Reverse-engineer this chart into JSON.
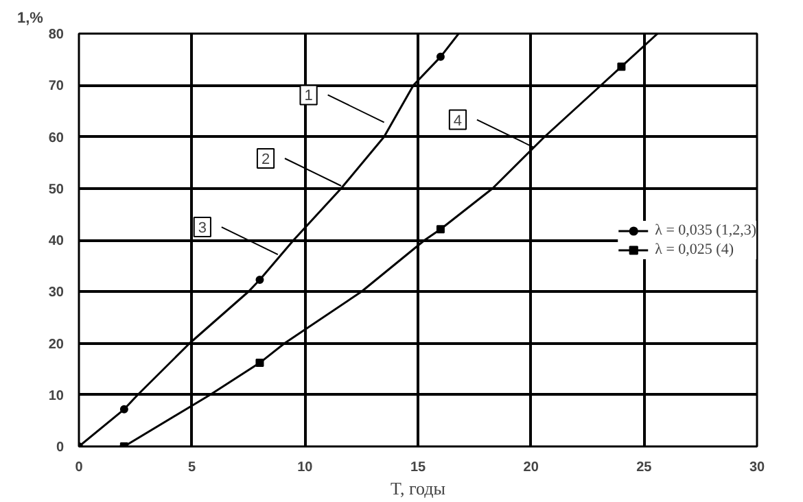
{
  "chart_data": {
    "type": "line",
    "xlabel": "T, годы",
    "ylabel": "1,%",
    "xlim": [
      0,
      30
    ],
    "ylim": [
      0,
      80
    ],
    "xticks": [
      0,
      5,
      10,
      15,
      20,
      25,
      30
    ],
    "yticks": [
      0,
      10,
      20,
      30,
      40,
      50,
      60,
      70,
      80
    ],
    "grid": true,
    "legend": "right",
    "line_style": "solid",
    "series": [
      {
        "name": "λ = 0,035 (1,2,3)",
        "color": "#000000",
        "marker": "none",
        "x": [
          0,
          2,
          2.6,
          4.9,
          7.5,
          8,
          9.5,
          11.6,
          13.5,
          14.8,
          16,
          16.8
        ],
        "values": [
          0,
          7.2,
          10,
          20,
          30,
          32.3,
          40,
          50,
          60,
          70,
          75.5,
          80
        ]
      },
      {
        "type": "scatter",
        "color": "#000000",
        "marker": "circle",
        "x": [
          0,
          2,
          8,
          16
        ],
        "values": [
          0,
          7.2,
          32.3,
          75.5
        ]
      },
      {
        "name": "λ = 0,025 (4)",
        "color": "#000000",
        "marker": "none",
        "x": [
          1.8,
          2,
          5.8,
          8,
          9.1,
          12.5,
          15.3,
          16,
          18.3,
          20.6,
          23.1,
          24,
          25.6
        ],
        "values": [
          0,
          0,
          10,
          16.2,
          20,
          30,
          40,
          42.1,
          50,
          60,
          70,
          73.6,
          80
        ]
      },
      {
        "type": "scatter",
        "color": "#000000",
        "marker": "square",
        "x": [
          2,
          8,
          16,
          24
        ],
        "values": [
          0,
          16.2,
          42.1,
          73.6
        ]
      }
    ],
    "annotations": [
      {
        "text": "1",
        "x": 13.5,
        "y": 62.8
      },
      {
        "text": "2",
        "x": 11.6,
        "y": 50.5
      },
      {
        "text": "3",
        "x": 8.8,
        "y": 37.2
      },
      {
        "text": "4",
        "x": 20.1,
        "y": 58
      }
    ]
  }
}
